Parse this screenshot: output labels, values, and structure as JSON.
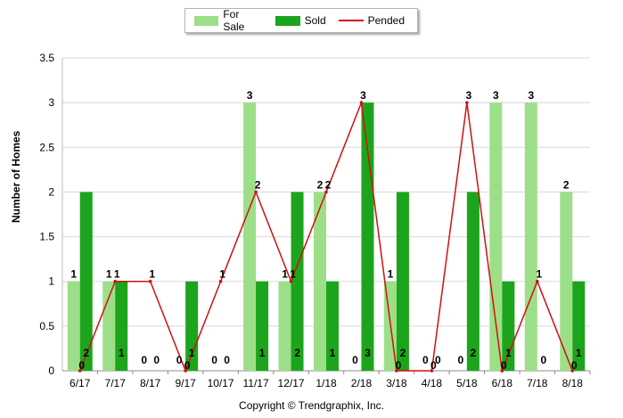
{
  "legend": {
    "for_sale": "For Sale",
    "sold": "Sold",
    "pended": "Pended"
  },
  "copyright": "Copyright © Trendgraphix, Inc.",
  "colors": {
    "for_sale": "#9ddf88",
    "sold": "#1ca51c",
    "pended": "#d01010",
    "grid": "#d8d8d8"
  },
  "chart_data": {
    "type": "bar",
    "categories": [
      "6/17",
      "7/17",
      "8/17",
      "9/17",
      "10/17",
      "11/17",
      "12/17",
      "1/18",
      "2/18",
      "3/18",
      "4/18",
      "5/18",
      "6/18",
      "7/18",
      "8/18"
    ],
    "series": [
      {
        "name": "For Sale",
        "type": "bar",
        "values": [
          1,
          1,
          0,
          0,
          0,
          3,
          1,
          2,
          0,
          1,
          0,
          0,
          3,
          3,
          2
        ]
      },
      {
        "name": "Sold",
        "type": "bar",
        "values": [
          2,
          1,
          0,
          1,
          0,
          1,
          2,
          1,
          3,
          2,
          0,
          2,
          1,
          0,
          1
        ]
      },
      {
        "name": "Pended",
        "type": "line",
        "values": [
          0,
          1,
          1,
          0,
          1,
          2,
          1,
          2,
          3,
          0,
          0,
          3,
          0,
          1,
          0
        ]
      }
    ],
    "ylabel": "Number of Homes",
    "ylim": [
      0,
      3.5
    ],
    "yticks": [
      "0",
      "0.5",
      "1",
      "1.5",
      "2",
      "2.5",
      "3",
      "3.5"
    ],
    "grid": true,
    "legend_position": "top-center"
  }
}
